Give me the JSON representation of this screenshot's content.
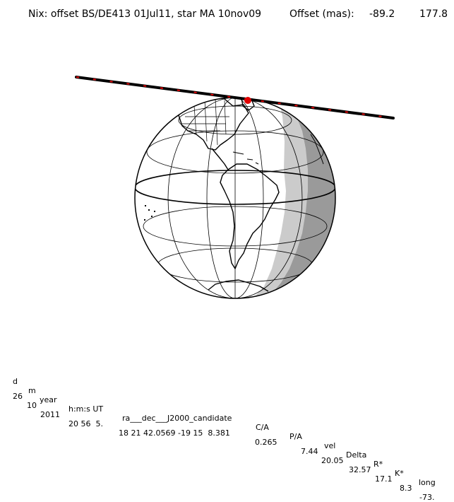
{
  "title": {
    "main": "Nix: offset BS/DE413 01Jul11, star MA 10nov09",
    "offset_label": "Offset (mas):",
    "offset_ra": "-89.2",
    "offset_dec": "177.8"
  },
  "map": {
    "view": "orthographic globe centred on South America",
    "shadow_zones": [
      "night (dark grey)",
      "twilight (light grey)"
    ],
    "colors": {
      "day": "#ffffff",
      "twilight": "#cbcbcb",
      "night": "#9a9a9a",
      "track": "#000000",
      "track_marks": "#e00000",
      "event": "#e00000"
    }
  },
  "table": {
    "headers": [
      "d",
      "m",
      "year",
      "h:m:s UT",
      "ra___dec___J2000_candidate",
      "C/A",
      "P/A",
      "vel",
      "Delta",
      "R*",
      "K*",
      "long"
    ],
    "values": [
      "26",
      "10",
      "2011",
      "20 56  5.",
      "18 21 42.0569 -19 15  8.381",
      "0.265",
      "7.44",
      "20.05",
      "32.57",
      "17.1",
      "8.3",
      "-73."
    ]
  }
}
